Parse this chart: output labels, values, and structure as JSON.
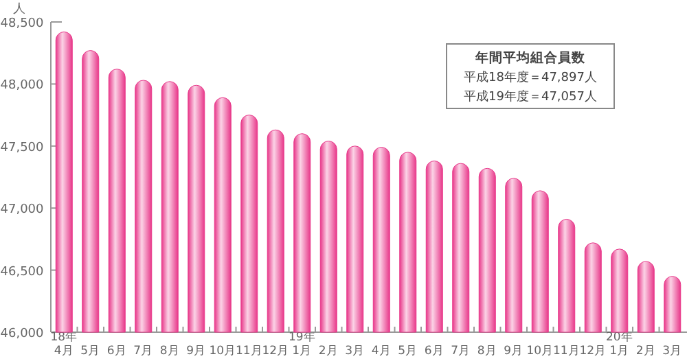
{
  "chart_data": {
    "type": "bar",
    "ylabel": "人",
    "categories": [
      "18年\n4月",
      "5月",
      "6月",
      "7月",
      "8月",
      "9月",
      "10月",
      "11月",
      "12月",
      "19年\n1月",
      "2月",
      "3月",
      "4月",
      "5月",
      "6月",
      "7月",
      "8月",
      "9月",
      "10月",
      "11月",
      "12月",
      "20年\n1月",
      "2月",
      "3月"
    ],
    "values": [
      48420,
      48270,
      48120,
      48030,
      48020,
      47990,
      47890,
      47750,
      47630,
      47600,
      47540,
      47500,
      47490,
      47450,
      47380,
      47360,
      47320,
      47240,
      47140,
      46910,
      46720,
      46670,
      46570,
      46450
    ],
    "color": "#e8388a",
    "ylim": [
      46000,
      48500
    ],
    "yticks": [
      {
        "value": 46000,
        "label": "46,000"
      },
      {
        "value": 46500,
        "label": "46,500"
      },
      {
        "value": 47000,
        "label": "47,000"
      },
      {
        "value": 47500,
        "label": "47,500"
      },
      {
        "value": 48000,
        "label": "48,000"
      },
      {
        "value": 48500,
        "label": "48,500"
      }
    ],
    "grid": false,
    "annotations": [
      "年間平均組合員数",
      "平成18年度＝47,897人",
      "平成19年度＝47,057人"
    ]
  }
}
